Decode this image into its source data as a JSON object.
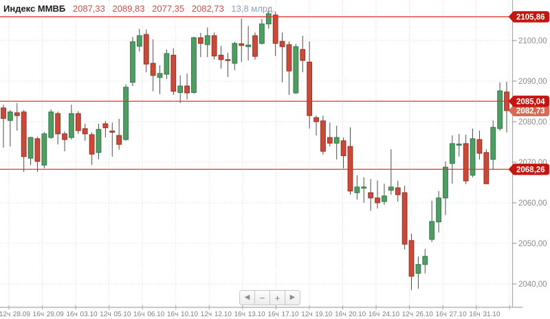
{
  "header": {
    "title": "Индекс ММВБ",
    "open": "2087,33",
    "high": "2089,83",
    "low": "2077,35",
    "close": "2082,73",
    "volume": "13,8 млрд."
  },
  "colors": {
    "up_fill": "#4f9d63",
    "up_border": "#2e7a45",
    "down_fill": "#c84b3a",
    "down_border": "#9b2f23",
    "wick": "#4a4a4a",
    "level_line": "#e03228",
    "level_badge": "#c6150f",
    "last_badge": "#d86a54",
    "badge_text": "#ffffff",
    "grid": "#d9d9d9",
    "axis": "#a8a8a8",
    "y_label": "#8a8a8a",
    "x_label": "#7f7f7f"
  },
  "nav": {
    "buttons": [
      {
        "name": "scroll-left-button",
        "glyph": "◀"
      },
      {
        "name": "zoom-out-button",
        "glyph": "−"
      },
      {
        "name": "zoom-in-button",
        "glyph": "+"
      },
      {
        "name": "scroll-right-button",
        "glyph": "▶"
      }
    ]
  },
  "chart_data": {
    "type": "candlestick",
    "title": "Индекс ММВБ",
    "last_values_ohlc": [
      2087.33,
      2089.83,
      2077.35,
      2082.73
    ],
    "volume_text": "13,8 млрд.",
    "y_axis": {
      "range": [
        2034.2,
        2110.0
      ],
      "grid": true,
      "ticks": [
        {
          "label": "2100,00",
          "value": 2100
        },
        {
          "label": "2090,00",
          "value": 2090
        },
        {
          "label": "2080,00",
          "value": 2080
        },
        {
          "label": "2070,00",
          "value": 2070
        },
        {
          "label": "2060,00",
          "value": 2060
        },
        {
          "label": "2050,00",
          "value": 2050
        },
        {
          "label": "2040,00",
          "value": 2040
        }
      ]
    },
    "x_axis": {
      "labels": [
        "12ч",
        "28.09",
        "16ч",
        "29.09",
        "16ч",
        "03.10",
        "12ч",
        "05.10",
        "16ч",
        "06.10",
        "16ч",
        "10.10",
        "12ч",
        "12.10",
        "16ч",
        "13.10",
        "16ч",
        "17.10",
        "12ч",
        "19.10",
        "16ч",
        "20.10",
        "16ч",
        "24.10",
        "12ч",
        "26.10",
        "16ч",
        "27.10",
        "16ч",
        "31.10"
      ]
    },
    "levels": [
      {
        "label": "2105,86",
        "value": 2105.86
      },
      {
        "label": "2085,04",
        "value": 2085.04
      },
      {
        "label": "2068,26",
        "value": 2068.26
      }
    ],
    "last_price": {
      "label": "2082,73",
      "value": 2082.73
    },
    "candles_format": [
      "open",
      "high",
      "low",
      "close"
    ],
    "candles": [
      [
        2083.4,
        2084.2,
        2073.6,
        2080.8
      ],
      [
        2080.3,
        2082.9,
        2073.9,
        2082.4
      ],
      [
        2082.2,
        2084.6,
        2077.8,
        2081.5
      ],
      [
        2082.4,
        2082.9,
        2067.6,
        2071.4
      ],
      [
        2071.0,
        2076.3,
        2069.3,
        2076.1
      ],
      [
        2075.8,
        2076.3,
        2067.6,
        2070.2
      ],
      [
        2069.3,
        2077.5,
        2068.5,
        2077.0
      ],
      [
        2076.1,
        2083.0,
        2075.8,
        2082.4
      ],
      [
        2082.0,
        2082.5,
        2074.4,
        2077.0
      ],
      [
        2077.0,
        2077.6,
        2072.7,
        2075.6
      ],
      [
        2076.1,
        2084.2,
        2075.6,
        2082.0
      ],
      [
        2082.0,
        2082.6,
        2077.0,
        2077.8
      ],
      [
        2078.3,
        2079.5,
        2075.3,
        2077.0
      ],
      [
        2076.8,
        2077.4,
        2069.3,
        2072.0
      ],
      [
        2072.4,
        2079.5,
        2070.7,
        2078.1
      ],
      [
        2079.5,
        2080.2,
        2076.1,
        2078.5
      ],
      [
        2077.7,
        2079.8,
        2071.4,
        2077.4
      ],
      [
        2076.6,
        2080.7,
        2073.1,
        2074.4
      ],
      [
        2075.6,
        2089.2,
        2075.3,
        2088.5
      ],
      [
        2089.7,
        2100.9,
        2088.8,
        2099.7
      ],
      [
        2098.6,
        2102.9,
        2097.3,
        2101.2
      ],
      [
        2101.5,
        2102.7,
        2092.2,
        2094.2
      ],
      [
        2094.4,
        2100.3,
        2087.5,
        2091.4
      ],
      [
        2090.9,
        2093.9,
        2086.8,
        2091.9
      ],
      [
        2091.7,
        2097.8,
        2090.5,
        2096.8
      ],
      [
        2096.4,
        2098.1,
        2086.6,
        2087.5
      ],
      [
        2087.2,
        2091.4,
        2084.6,
        2088.8
      ],
      [
        2088.8,
        2091.9,
        2085.5,
        2087.1
      ],
      [
        2087.2,
        2101.0,
        2086.9,
        2100.7
      ],
      [
        2100.7,
        2101.9,
        2095.9,
        2099.3
      ],
      [
        2099.0,
        2103.2,
        2095.9,
        2101.2
      ],
      [
        2101.2,
        2102.0,
        2095.3,
        2096.2
      ],
      [
        2096.4,
        2098.7,
        2093.1,
        2095.3
      ],
      [
        2095.3,
        2097.0,
        2091.0,
        2095.1
      ],
      [
        2094.4,
        2099.7,
        2092.7,
        2099.3
      ],
      [
        2099.2,
        2105.4,
        2094.7,
        2098.8
      ],
      [
        2098.5,
        2103.6,
        2095.1,
        2098.9
      ],
      [
        2101.2,
        2102.0,
        2095.3,
        2096.1
      ],
      [
        2099.3,
        2105.3,
        2099.0,
        2104.1
      ],
      [
        2104.1,
        2108.0,
        2102.9,
        2106.6
      ],
      [
        2106.3,
        2107.1,
        2096.2,
        2099.3
      ],
      [
        2099.8,
        2102.0,
        2089.7,
        2098.5
      ],
      [
        2099.0,
        2099.8,
        2086.6,
        2092.5
      ],
      [
        2087.1,
        2099.2,
        2086.8,
        2098.5
      ],
      [
        2097.8,
        2101.2,
        2092.2,
        2095.1
      ],
      [
        2094.7,
        2099.8,
        2078.3,
        2081.5
      ],
      [
        2081.0,
        2081.5,
        2076.6,
        2080.0
      ],
      [
        2080.2,
        2081.5,
        2071.9,
        2072.7
      ],
      [
        2076.1,
        2079.8,
        2073.9,
        2074.7
      ],
      [
        2074.7,
        2079.0,
        2070.7,
        2076.1
      ],
      [
        2075.3,
        2076.1,
        2068.5,
        2071.6
      ],
      [
        2073.9,
        2078.6,
        2062.0,
        2062.9
      ],
      [
        2062.5,
        2066.8,
        2060.8,
        2063.9
      ],
      [
        2063.6,
        2066.3,
        2060.0,
        2063.9
      ],
      [
        2062.5,
        2065.9,
        2058.0,
        2061.2
      ],
      [
        2061.2,
        2065.5,
        2058.6,
        2060.0
      ],
      [
        2060.3,
        2064.7,
        2059.5,
        2061.7
      ],
      [
        2063.1,
        2073.2,
        2062.0,
        2063.9
      ],
      [
        2063.7,
        2065.4,
        2060.3,
        2062.0
      ],
      [
        2062.5,
        2064.2,
        2048.5,
        2049.8
      ],
      [
        2050.7,
        2052.4,
        2038.5,
        2041.9
      ],
      [
        2042.6,
        2046.8,
        2038.8,
        2044.8
      ],
      [
        2044.8,
        2048.6,
        2042.6,
        2046.8
      ],
      [
        2051.0,
        2060.5,
        2050.3,
        2055.4
      ],
      [
        2055.3,
        2062.9,
        2052.7,
        2061.2
      ],
      [
        2061.2,
        2070.2,
        2057.0,
        2068.8
      ],
      [
        2069.7,
        2076.6,
        2064.7,
        2074.6
      ],
      [
        2074.2,
        2077.0,
        2071.4,
        2074.5
      ],
      [
        2074.6,
        2076.8,
        2064.6,
        2065.4
      ],
      [
        2066.8,
        2078.3,
        2066.3,
        2075.8
      ],
      [
        2075.6,
        2077.8,
        2070.7,
        2072.2
      ],
      [
        2072.4,
        2073.2,
        2064.6,
        2064.7
      ],
      [
        2070.7,
        2080.3,
        2068.1,
        2078.6
      ],
      [
        2078.3,
        2089.7,
        2077.8,
        2087.6
      ],
      [
        2087.33,
        2089.83,
        2077.35,
        2082.73
      ]
    ]
  }
}
